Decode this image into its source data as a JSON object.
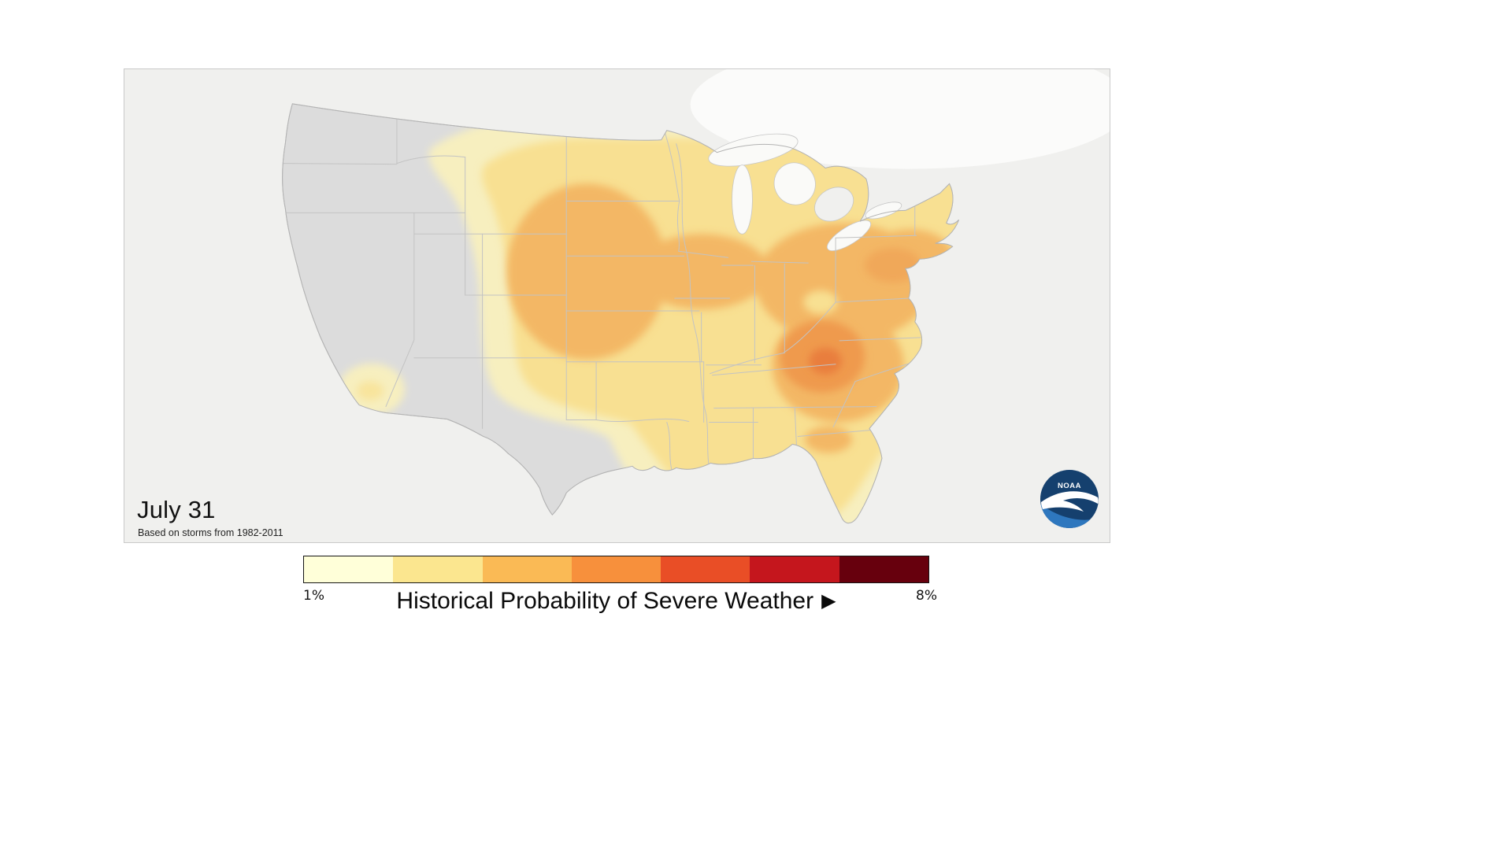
{
  "panel": {
    "date_label": "July 31",
    "source_note": "Based on storms from 1982-2011"
  },
  "logo": {
    "text": "NOAA",
    "navy": "#15406E",
    "light_blue": "#2E77BE"
  },
  "legend": {
    "min_label": "1%",
    "max_label": "8%",
    "caption": "Historical Probability of Severe Weather",
    "arrow": "▶",
    "colors": [
      "#FFFFD9",
      "#FBE68F",
      "#FABA55",
      "#F7903C",
      "#E94E26",
      "#C5161D",
      "#67000D"
    ]
  },
  "map": {
    "background": "#F0F0EE",
    "water": "#FAFAF8",
    "land": "#DCDCDC",
    "state_line": "#C3C3C3",
    "levels": {
      "l1": "#F7EFBF",
      "l2": "#F8E092",
      "l3": "#F3B765",
      "l4": "#EF9A4E",
      "l5": "#E97E3C"
    }
  }
}
